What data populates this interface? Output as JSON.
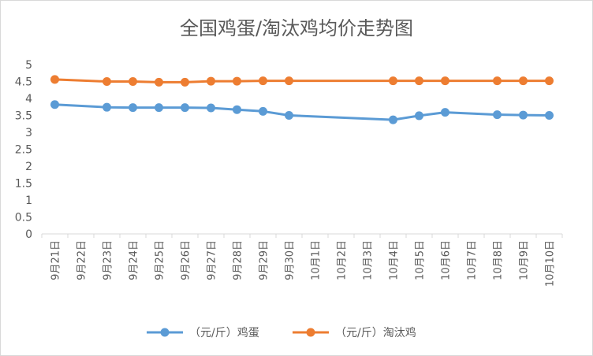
{
  "chart_data": {
    "type": "line",
    "title": "全国鸡蛋/淘汰鸡均价走势图",
    "categories": [
      "9月21日",
      "9月22日",
      "9月23日",
      "9月24日",
      "9月25日",
      "9月26日",
      "9月27日",
      "9月28日",
      "9月29日",
      "9月30日",
      "10月1日",
      "10月2日",
      "10月3日",
      "10月4日",
      "10月5日",
      "10月6日",
      "10月7日",
      "10月8日",
      "10月9日",
      "10月10日"
    ],
    "series": [
      {
        "name": "（元/斤）鸡蛋",
        "color": "#5B9BD5",
        "values": [
          3.82,
          null,
          3.74,
          3.73,
          3.73,
          3.73,
          3.72,
          3.67,
          3.62,
          3.5,
          null,
          null,
          null,
          3.37,
          3.49,
          3.59,
          null,
          3.52,
          3.51,
          3.5
        ]
      },
      {
        "name": "（元/斤）淘汰鸡",
        "color": "#ED7D31",
        "values": [
          4.56,
          null,
          4.5,
          4.5,
          4.48,
          4.48,
          4.51,
          4.51,
          4.52,
          4.52,
          null,
          null,
          null,
          4.52,
          4.52,
          4.52,
          null,
          4.52,
          4.52,
          4.52
        ]
      }
    ],
    "ylim": [
      0,
      5
    ],
    "yticks": [
      "0",
      "0.5",
      "1",
      "1.5",
      "2",
      "2.5",
      "3",
      "3.5",
      "4",
      "4.5",
      "5"
    ],
    "grid": false,
    "legend_position": "bottom"
  }
}
